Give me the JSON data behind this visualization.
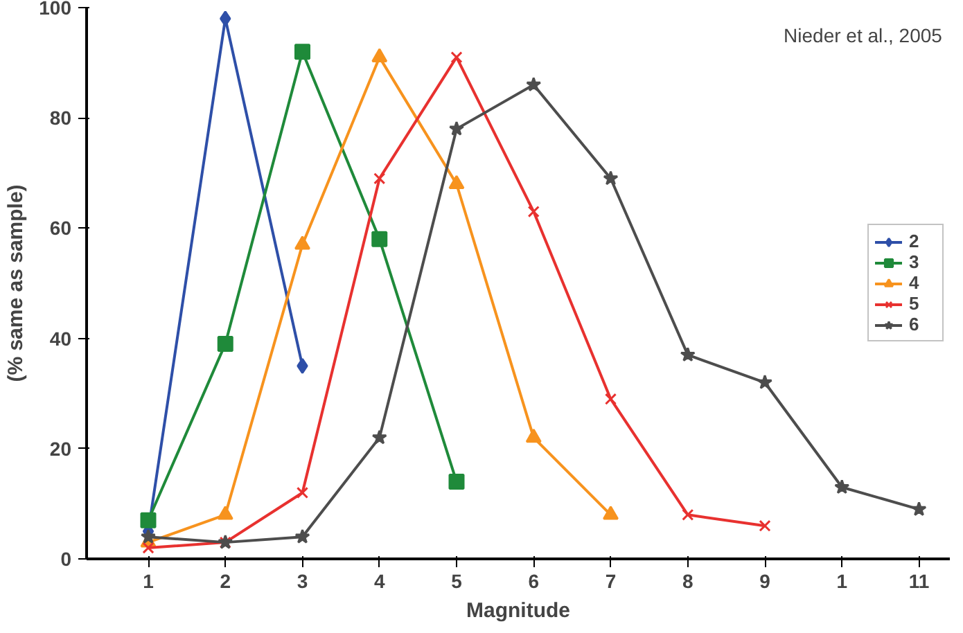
{
  "chart_data": {
    "type": "line",
    "xlabel": "Magnitude",
    "ylabel": "(% same as sample)",
    "annotations": [
      "Nieder et al., 2005"
    ],
    "categories": [
      "1",
      "2",
      "3",
      "4",
      "5",
      "6",
      "7",
      "8",
      "9",
      "1",
      "11"
    ],
    "ylim": [
      0,
      100
    ],
    "yticks": [
      0,
      20,
      40,
      60,
      80,
      100
    ],
    "grid": false,
    "legend": "right",
    "line_style": "solid",
    "series": [
      {
        "name": "2",
        "color": "#2e4fa8",
        "marker": "diamond",
        "values": [
          5,
          98,
          35,
          null,
          null,
          null,
          null,
          null,
          null,
          null,
          null
        ]
      },
      {
        "name": "3",
        "color": "#1f8a3a",
        "marker": "square",
        "values": [
          7,
          39,
          92,
          58,
          14,
          null,
          null,
          null,
          null,
          null,
          null
        ]
      },
      {
        "name": "4",
        "color": "#f7931e",
        "marker": "triangle",
        "values": [
          3,
          8,
          57,
          91,
          68,
          22,
          8,
          null,
          null,
          null,
          null
        ]
      },
      {
        "name": "5",
        "color": "#e8312f",
        "marker": "cross",
        "values": [
          2,
          3,
          12,
          69,
          91,
          63,
          29,
          8,
          6,
          null,
          null
        ]
      },
      {
        "name": "6",
        "color": "#4d4d4d",
        "marker": "star",
        "values": [
          4,
          3,
          4,
          22,
          78,
          86,
          69,
          37,
          32,
          13,
          9
        ]
      }
    ]
  }
}
